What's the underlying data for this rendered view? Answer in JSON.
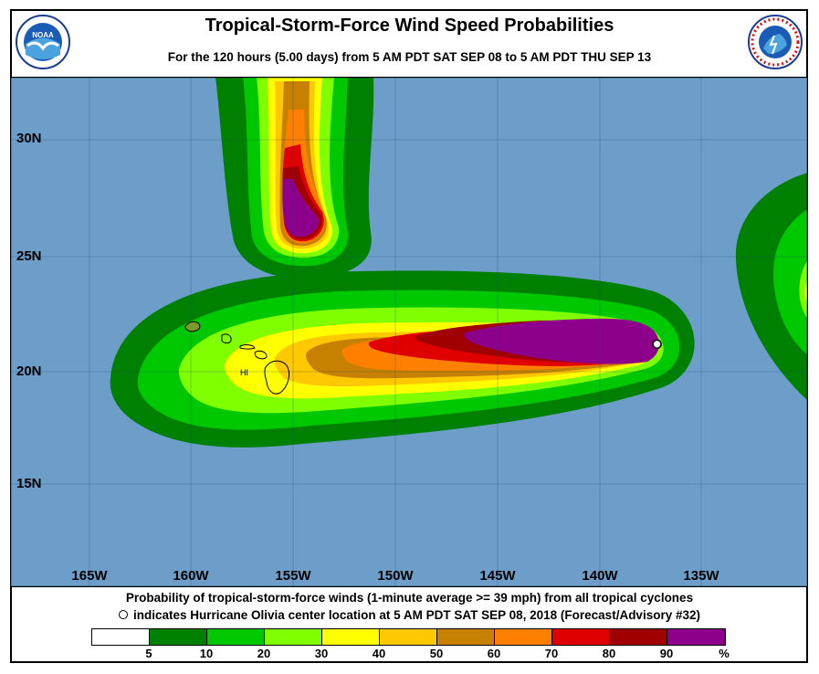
{
  "title": "Tropical-Storm-Force Wind Speed Probabilities",
  "subtitle": "For the 120 hours (5.00 days) from 5 AM PDT SAT SEP 08 to 5 AM PDT THU SEP 13",
  "logos": {
    "left": "NOAA",
    "right": "NATIONAL WEATHER SERVICE"
  },
  "map": {
    "ocean_color": "#6c9ec9",
    "latitude_labels": [
      "30N",
      "25N",
      "20N",
      "15N"
    ],
    "longitude_labels": [
      "165W",
      "160W",
      "155W",
      "150W",
      "145W",
      "140W",
      "135W"
    ],
    "island_label": "HI",
    "storm_center": {
      "lon": -137.2,
      "lat": 21.2
    }
  },
  "footnote_line1": "Probability of tropical-storm-force winds (1-minute average >= 39 mph) from all tropical cyclones",
  "footnote_line2": "indicates Hurricane Olivia center location at 5 AM PDT SAT SEP 08, 2018 (Forecast/Advisory #32)",
  "legend": {
    "colors": [
      "#ffffff",
      "#008000",
      "#00c800",
      "#80ff00",
      "#ffff00",
      "#ffc800",
      "#c88000",
      "#ff8000",
      "#e00000",
      "#a00000",
      "#8c008c"
    ],
    "ticks": [
      "5",
      "10",
      "20",
      "30",
      "40",
      "50",
      "60",
      "70",
      "80",
      "90",
      "%"
    ]
  }
}
